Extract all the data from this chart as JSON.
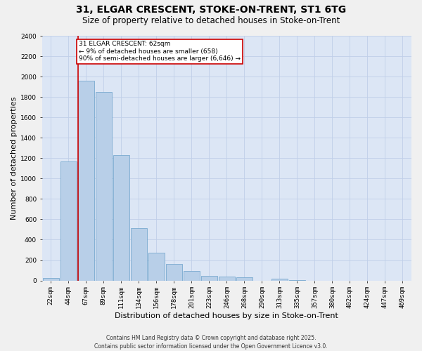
{
  "title": "31, ELGAR CRESCENT, STOKE-ON-TRENT, ST1 6TG",
  "subtitle": "Size of property relative to detached houses in Stoke-on-Trent",
  "xlabel": "Distribution of detached houses by size in Stoke-on-Trent",
  "ylabel": "Number of detached properties",
  "fig_bg": "#f0f0f0",
  "plot_bg": "#dce6f5",
  "bar_color": "#b8cfe8",
  "bar_edge_color": "#7aaad0",
  "bins": [
    "22sqm",
    "44sqm",
    "67sqm",
    "89sqm",
    "111sqm",
    "134sqm",
    "156sqm",
    "178sqm",
    "201sqm",
    "223sqm",
    "246sqm",
    "268sqm",
    "290sqm",
    "313sqm",
    "335sqm",
    "357sqm",
    "380sqm",
    "402sqm",
    "424sqm",
    "447sqm",
    "469sqm"
  ],
  "values": [
    25,
    1165,
    1960,
    1850,
    1230,
    510,
    270,
    160,
    95,
    45,
    35,
    30,
    0,
    15,
    5,
    0,
    0,
    0,
    0,
    0,
    0
  ],
  "vline_color": "#cc0000",
  "vline_bin_index": 2,
  "annotation_text": "31 ELGAR CRESCENT: 62sqm\n← 9% of detached houses are smaller (658)\n90% of semi-detached houses are larger (6,646) →",
  "annotation_box_color": "#cc0000",
  "annotation_box_fill": "#ffffff",
  "ylim": [
    0,
    2400
  ],
  "yticks": [
    0,
    200,
    400,
    600,
    800,
    1000,
    1200,
    1400,
    1600,
    1800,
    2000,
    2200,
    2400
  ],
  "footer": "Contains HM Land Registry data © Crown copyright and database right 2025.\nContains public sector information licensed under the Open Government Licence v3.0.",
  "grid_color": "#c0cfe8",
  "title_fontsize": 10,
  "subtitle_fontsize": 8.5,
  "ylabel_fontsize": 8,
  "xlabel_fontsize": 8,
  "tick_fontsize": 6.5,
  "annotation_fontsize": 6.5,
  "footer_fontsize": 5.5
}
